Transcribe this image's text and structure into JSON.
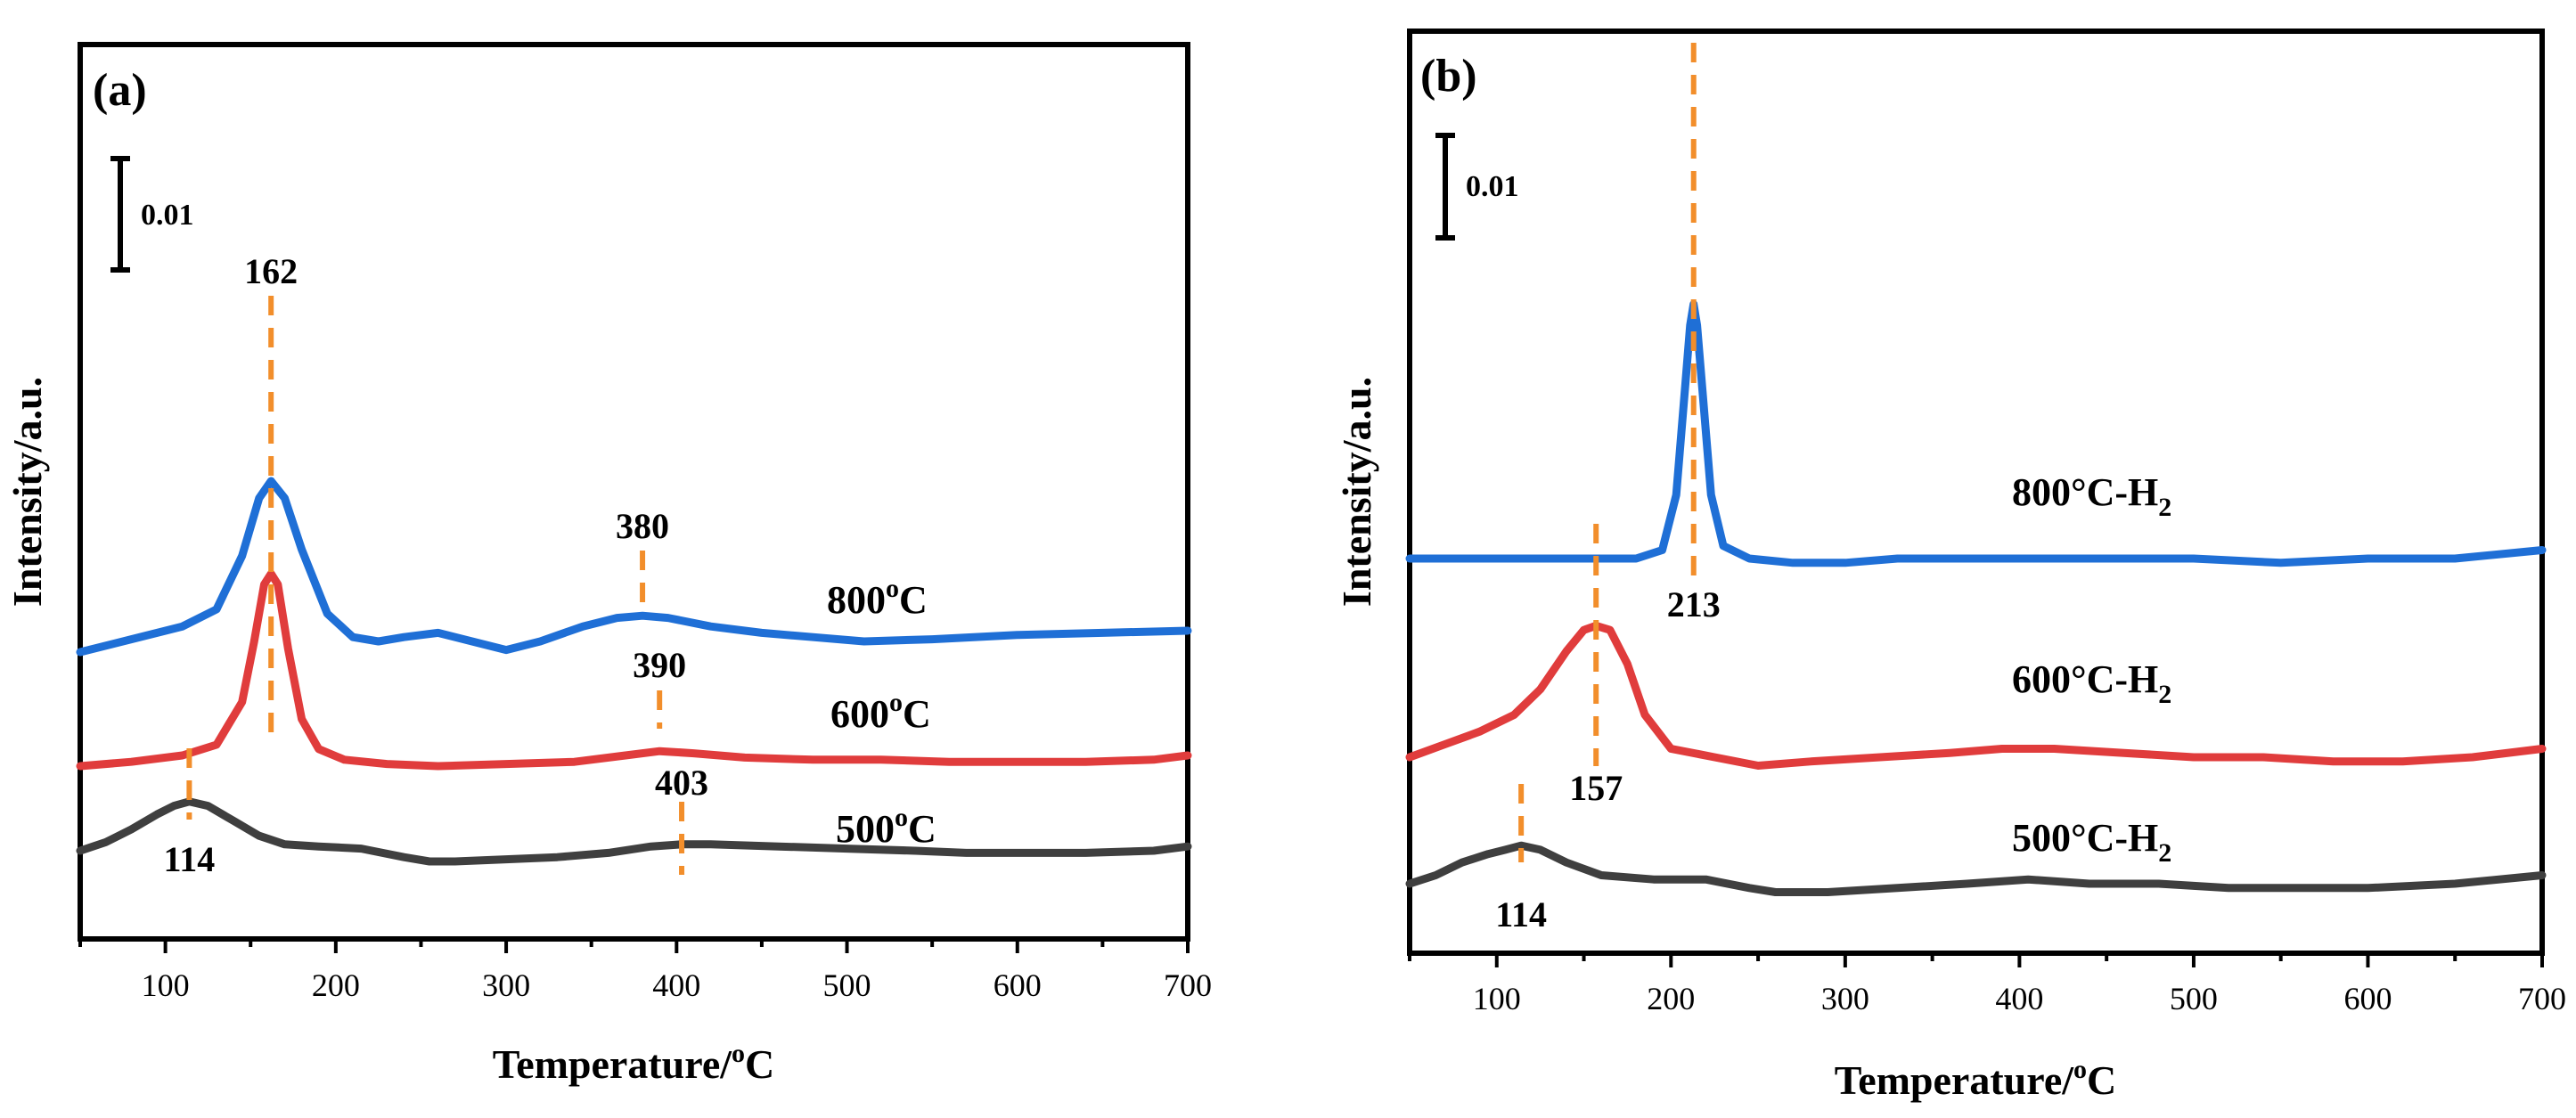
{
  "chart_data": [
    {
      "type": "line",
      "panel_label": "(a)",
      "xlabel": "Temperature/",
      "xlabel_sup": "o",
      "xlabel_unit": "C",
      "ylabel": "Intensity/a.u.",
      "xlim": [
        50,
        700
      ],
      "xticks": [
        "100",
        "200",
        "300",
        "400",
        "500",
        "600",
        "700"
      ],
      "scale_bar": "0.01",
      "y_axis_values_shown": false,
      "series": [
        {
          "name": "800",
          "name_sup": "o",
          "name_suffix": "C",
          "color": "#1F6FD6",
          "points": [
            [
              50,
              0.0
            ],
            [
              80,
              0.006
            ],
            [
              110,
              0.012
            ],
            [
              130,
              0.02
            ],
            [
              145,
              0.045
            ],
            [
              155,
              0.072
            ],
            [
              162,
              0.08
            ],
            [
              170,
              0.072
            ],
            [
              180,
              0.048
            ],
            [
              195,
              0.018
            ],
            [
              210,
              0.007
            ],
            [
              225,
              0.005
            ],
            [
              240,
              0.007
            ],
            [
              260,
              0.009
            ],
            [
              280,
              0.005
            ],
            [
              300,
              0.001
            ],
            [
              320,
              0.005
            ],
            [
              345,
              0.012
            ],
            [
              365,
              0.016
            ],
            [
              380,
              0.017
            ],
            [
              395,
              0.016
            ],
            [
              420,
              0.012
            ],
            [
              450,
              0.009
            ],
            [
              480,
              0.007
            ],
            [
              510,
              0.005
            ],
            [
              550,
              0.006
            ],
            [
              600,
              0.008
            ],
            [
              650,
              0.009
            ],
            [
              700,
              0.01
            ]
          ]
        },
        {
          "name": "600",
          "name_sup": "o",
          "name_suffix": "C",
          "color": "#E03C3C",
          "points": [
            [
              50,
              0.0
            ],
            [
              80,
              0.002
            ],
            [
              110,
              0.005
            ],
            [
              130,
              0.01
            ],
            [
              145,
              0.03
            ],
            [
              152,
              0.058
            ],
            [
              158,
              0.085
            ],
            [
              162,
              0.09
            ],
            [
              166,
              0.085
            ],
            [
              172,
              0.055
            ],
            [
              180,
              0.022
            ],
            [
              190,
              0.008
            ],
            [
              205,
              0.003
            ],
            [
              230,
              0.001
            ],
            [
              260,
              0.0
            ],
            [
              300,
              0.001
            ],
            [
              340,
              0.002
            ],
            [
              370,
              0.005
            ],
            [
              390,
              0.007
            ],
            [
              410,
              0.006
            ],
            [
              440,
              0.004
            ],
            [
              480,
              0.003
            ],
            [
              520,
              0.003
            ],
            [
              560,
              0.002
            ],
            [
              600,
              0.002
            ],
            [
              640,
              0.002
            ],
            [
              680,
              0.003
            ],
            [
              700,
              0.005
            ]
          ]
        },
        {
          "name": "500",
          "name_sup": "o",
          "name_suffix": "C",
          "color": "#3F3F3F",
          "points": [
            [
              50,
              0.0
            ],
            [
              65,
              0.004
            ],
            [
              80,
              0.01
            ],
            [
              95,
              0.017
            ],
            [
              105,
              0.021
            ],
            [
              114,
              0.023
            ],
            [
              125,
              0.021
            ],
            [
              140,
              0.014
            ],
            [
              155,
              0.007
            ],
            [
              170,
              0.003
            ],
            [
              190,
              0.002
            ],
            [
              215,
              0.001
            ],
            [
              240,
              -0.003
            ],
            [
              255,
              -0.005
            ],
            [
              270,
              -0.005
            ],
            [
              300,
              -0.004
            ],
            [
              330,
              -0.003
            ],
            [
              360,
              -0.001
            ],
            [
              385,
              0.002
            ],
            [
              403,
              0.003
            ],
            [
              420,
              0.003
            ],
            [
              460,
              0.002
            ],
            [
              500,
              0.001
            ],
            [
              540,
              0.0
            ],
            [
              570,
              -0.001
            ],
            [
              600,
              -0.001
            ],
            [
              640,
              -0.001
            ],
            [
              680,
              0.0
            ],
            [
              700,
              0.002
            ]
          ]
        }
      ],
      "peak_labels": [
        "162",
        "380",
        "390",
        "114",
        "403"
      ],
      "peaks": [
        {
          "label": "162",
          "x": 162
        },
        {
          "label": "380",
          "x": 380
        },
        {
          "label": "390",
          "x": 390
        },
        {
          "label": "114",
          "x": 114
        },
        {
          "label": "403",
          "x": 403
        }
      ]
    },
    {
      "type": "line",
      "panel_label": "(b)",
      "xlabel": "Temperature/",
      "xlabel_sup": "o",
      "xlabel_unit": "C",
      "ylabel": "Intensity/a.u.",
      "xlim": [
        50,
        700
      ],
      "xticks": [
        "100",
        "200",
        "300",
        "400",
        "500",
        "600",
        "700"
      ],
      "scale_bar": "0.01",
      "y_axis_values_shown": false,
      "series": [
        {
          "name": "800°C-H",
          "name_sub": "2",
          "color": "#1F6FD6",
          "points": [
            [
              50,
              0.0
            ],
            [
              100,
              0.0
            ],
            [
              150,
              0.0
            ],
            [
              180,
              0.0
            ],
            [
              195,
              0.002
            ],
            [
              203,
              0.015
            ],
            [
              208,
              0.04
            ],
            [
              211,
              0.055
            ],
            [
              213,
              0.06
            ],
            [
              215,
              0.055
            ],
            [
              218,
              0.04
            ],
            [
              223,
              0.015
            ],
            [
              230,
              0.003
            ],
            [
              245,
              0.0
            ],
            [
              270,
              -0.001
            ],
            [
              300,
              -0.001
            ],
            [
              330,
              0.0
            ],
            [
              360,
              0.0
            ],
            [
              390,
              0.0
            ],
            [
              420,
              0.0
            ],
            [
              450,
              0.0
            ],
            [
              500,
              0.0
            ],
            [
              550,
              -0.001
            ],
            [
              600,
              0.0
            ],
            [
              650,
              0.0
            ],
            [
              700,
              0.002
            ]
          ]
        },
        {
          "name": "600°C-H",
          "name_sub": "2",
          "color": "#E03C3C",
          "points": [
            [
              50,
              0.0
            ],
            [
              70,
              0.003
            ],
            [
              90,
              0.006
            ],
            [
              110,
              0.01
            ],
            [
              125,
              0.016
            ],
            [
              140,
              0.025
            ],
            [
              150,
              0.03
            ],
            [
              157,
              0.031
            ],
            [
              165,
              0.03
            ],
            [
              175,
              0.022
            ],
            [
              185,
              0.01
            ],
            [
              200,
              0.002
            ],
            [
              225,
              0.0
            ],
            [
              250,
              -0.002
            ],
            [
              280,
              -0.001
            ],
            [
              320,
              0.0
            ],
            [
              360,
              0.001
            ],
            [
              390,
              0.002
            ],
            [
              420,
              0.002
            ],
            [
              460,
              0.001
            ],
            [
              500,
              0.0
            ],
            [
              540,
              0.0
            ],
            [
              580,
              -0.001
            ],
            [
              620,
              -0.001
            ],
            [
              660,
              0.0
            ],
            [
              700,
              0.002
            ]
          ]
        },
        {
          "name": "500°C-H",
          "name_sub": "2",
          "color": "#3F3F3F",
          "points": [
            [
              50,
              0.0
            ],
            [
              65,
              0.002
            ],
            [
              80,
              0.005
            ],
            [
              95,
              0.007
            ],
            [
              105,
              0.008
            ],
            [
              114,
              0.009
            ],
            [
              125,
              0.008
            ],
            [
              140,
              0.005
            ],
            [
              160,
              0.002
            ],
            [
              190,
              0.001
            ],
            [
              220,
              0.001
            ],
            [
              245,
              -0.001
            ],
            [
              260,
              -0.002
            ],
            [
              290,
              -0.002
            ],
            [
              330,
              -0.001
            ],
            [
              370,
              0.0
            ],
            [
              405,
              0.001
            ],
            [
              440,
              0.0
            ],
            [
              480,
              0.0
            ],
            [
              520,
              -0.001
            ],
            [
              560,
              -0.001
            ],
            [
              600,
              -0.001
            ],
            [
              650,
              0.0
            ],
            [
              700,
              0.002
            ]
          ]
        }
      ],
      "peak_labels": [
        "213",
        "157",
        "114"
      ],
      "peaks": [
        {
          "label": "213",
          "x": 213
        },
        {
          "label": "157",
          "x": 157
        },
        {
          "label": "114",
          "x": 114
        }
      ]
    }
  ]
}
